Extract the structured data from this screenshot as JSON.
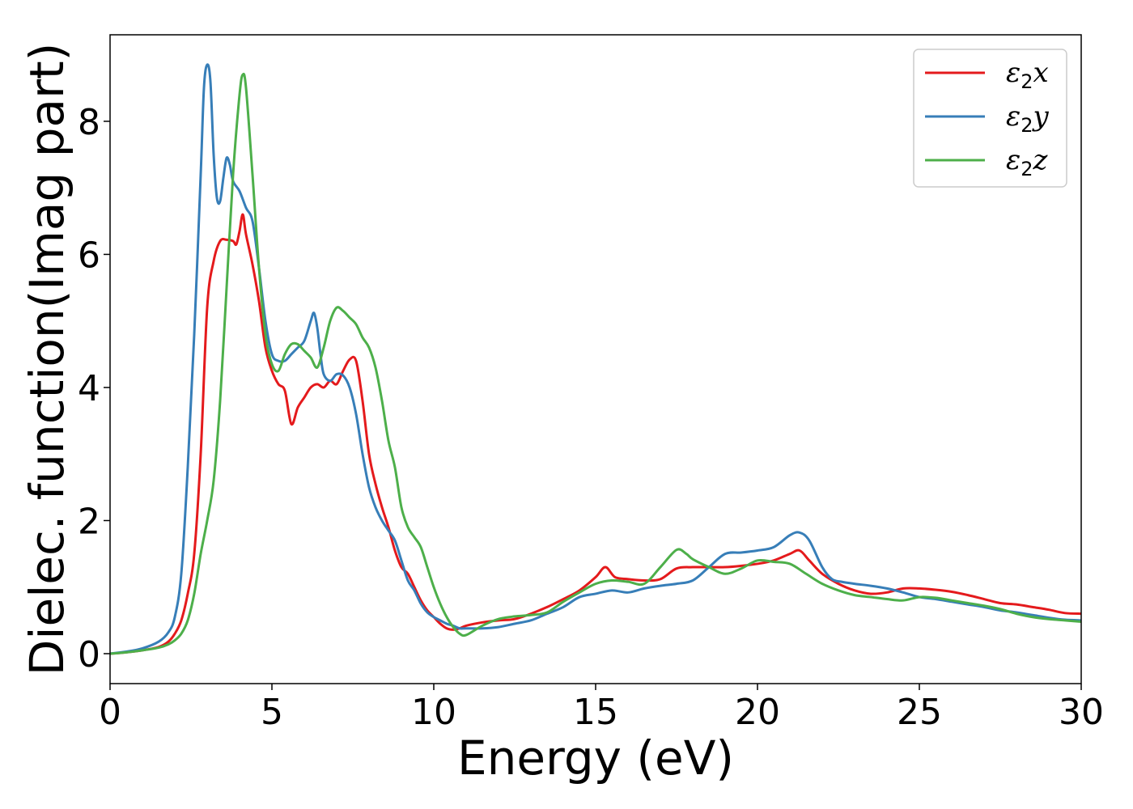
{
  "chart_data": {
    "type": "line",
    "xlabel": "Energy (eV)",
    "ylabel": "Dielec. function(Imag part)",
    "xlim": [
      0,
      30
    ],
    "ylim": [
      -0.45,
      9.3
    ],
    "xticks": [
      "0",
      "5",
      "10",
      "15",
      "20",
      "25",
      "30"
    ],
    "yticks": [
      "0",
      "2",
      "4",
      "6",
      "8"
    ],
    "grid": false,
    "legend_position": "top-right",
    "series": [
      {
        "name": "ε2x",
        "legend_symbol": "ε",
        "legend_sub": "2",
        "legend_var": "x",
        "color": "#e41a1c",
        "points": [
          [
            0,
            0
          ],
          [
            0.5,
            0.02
          ],
          [
            1,
            0.05
          ],
          [
            1.5,
            0.1
          ],
          [
            1.8,
            0.18
          ],
          [
            2,
            0.3
          ],
          [
            2.2,
            0.5
          ],
          [
            2.4,
            0.9
          ],
          [
            2.6,
            1.5
          ],
          [
            2.8,
            3
          ],
          [
            3,
            5.2
          ],
          [
            3.2,
            5.9
          ],
          [
            3.4,
            6.2
          ],
          [
            3.6,
            6.22
          ],
          [
            3.8,
            6.2
          ],
          [
            3.9,
            6.15
          ],
          [
            4,
            6.35
          ],
          [
            4.1,
            6.6
          ],
          [
            4.2,
            6.3
          ],
          [
            4.4,
            5.85
          ],
          [
            4.6,
            5.3
          ],
          [
            4.8,
            4.6
          ],
          [
            5,
            4.25
          ],
          [
            5.2,
            4.05
          ],
          [
            5.4,
            3.95
          ],
          [
            5.6,
            3.45
          ],
          [
            5.8,
            3.7
          ],
          [
            6,
            3.85
          ],
          [
            6.2,
            4.0
          ],
          [
            6.4,
            4.05
          ],
          [
            6.6,
            4.0
          ],
          [
            6.8,
            4.1
          ],
          [
            7,
            4.05
          ],
          [
            7.2,
            4.25
          ],
          [
            7.4,
            4.42
          ],
          [
            7.6,
            4.4
          ],
          [
            7.8,
            3.8
          ],
          [
            8,
            3.0
          ],
          [
            8.2,
            2.55
          ],
          [
            8.4,
            2.2
          ],
          [
            8.6,
            1.9
          ],
          [
            8.8,
            1.55
          ],
          [
            9,
            1.3
          ],
          [
            9.2,
            1.2
          ],
          [
            9.4,
            1.0
          ],
          [
            9.6,
            0.8
          ],
          [
            9.8,
            0.65
          ],
          [
            10,
            0.55
          ],
          [
            10.2,
            0.45
          ],
          [
            10.4,
            0.38
          ],
          [
            10.6,
            0.36
          ],
          [
            10.8,
            0.38
          ],
          [
            11,
            0.42
          ],
          [
            11.5,
            0.47
          ],
          [
            12,
            0.5
          ],
          [
            12.5,
            0.52
          ],
          [
            13,
            0.6
          ],
          [
            13.5,
            0.7
          ],
          [
            14,
            0.82
          ],
          [
            14.5,
            0.95
          ],
          [
            15,
            1.15
          ],
          [
            15.3,
            1.3
          ],
          [
            15.6,
            1.15
          ],
          [
            16,
            1.12
          ],
          [
            16.5,
            1.1
          ],
          [
            17,
            1.12
          ],
          [
            17.5,
            1.28
          ],
          [
            18,
            1.3
          ],
          [
            18.5,
            1.3
          ],
          [
            19,
            1.3
          ],
          [
            19.5,
            1.32
          ],
          [
            20,
            1.35
          ],
          [
            20.5,
            1.4
          ],
          [
            21,
            1.5
          ],
          [
            21.3,
            1.55
          ],
          [
            21.6,
            1.4
          ],
          [
            22,
            1.2
          ],
          [
            22.5,
            1.05
          ],
          [
            23,
            0.95
          ],
          [
            23.5,
            0.9
          ],
          [
            24,
            0.92
          ],
          [
            24.5,
            0.98
          ],
          [
            25,
            0.98
          ],
          [
            25.5,
            0.96
          ],
          [
            26,
            0.93
          ],
          [
            26.5,
            0.88
          ],
          [
            27,
            0.82
          ],
          [
            27.5,
            0.76
          ],
          [
            28,
            0.74
          ],
          [
            28.5,
            0.7
          ],
          [
            29,
            0.66
          ],
          [
            29.5,
            0.61
          ],
          [
            30,
            0.6
          ]
        ]
      },
      {
        "name": "ε2y",
        "legend_symbol": "ε",
        "legend_sub": "2",
        "legend_var": "y",
        "color": "#377eb8",
        "points": [
          [
            0,
            0
          ],
          [
            0.5,
            0.03
          ],
          [
            1,
            0.08
          ],
          [
            1.5,
            0.18
          ],
          [
            1.8,
            0.32
          ],
          [
            2,
            0.55
          ],
          [
            2.2,
            1.2
          ],
          [
            2.4,
            2.8
          ],
          [
            2.6,
            4.8
          ],
          [
            2.8,
            7.2
          ],
          [
            2.9,
            8.5
          ],
          [
            3,
            8.85
          ],
          [
            3.1,
            8.6
          ],
          [
            3.2,
            7.5
          ],
          [
            3.3,
            6.85
          ],
          [
            3.4,
            6.8
          ],
          [
            3.5,
            7.15
          ],
          [
            3.6,
            7.45
          ],
          [
            3.7,
            7.35
          ],
          [
            3.8,
            7.1
          ],
          [
            4,
            6.95
          ],
          [
            4.2,
            6.7
          ],
          [
            4.4,
            6.5
          ],
          [
            4.6,
            5.8
          ],
          [
            4.8,
            5.0
          ],
          [
            5,
            4.5
          ],
          [
            5.2,
            4.4
          ],
          [
            5.4,
            4.4
          ],
          [
            5.6,
            4.5
          ],
          [
            5.8,
            4.6
          ],
          [
            6,
            4.7
          ],
          [
            6.2,
            5.0
          ],
          [
            6.3,
            5.12
          ],
          [
            6.4,
            4.9
          ],
          [
            6.5,
            4.5
          ],
          [
            6.6,
            4.2
          ],
          [
            6.8,
            4.1
          ],
          [
            7,
            4.2
          ],
          [
            7.2,
            4.18
          ],
          [
            7.4,
            4.0
          ],
          [
            7.6,
            3.6
          ],
          [
            7.8,
            3.0
          ],
          [
            8,
            2.5
          ],
          [
            8.2,
            2.2
          ],
          [
            8.4,
            2.0
          ],
          [
            8.6,
            1.85
          ],
          [
            8.8,
            1.7
          ],
          [
            9,
            1.4
          ],
          [
            9.2,
            1.1
          ],
          [
            9.4,
            0.95
          ],
          [
            9.6,
            0.75
          ],
          [
            9.8,
            0.62
          ],
          [
            10,
            0.55
          ],
          [
            10.2,
            0.5
          ],
          [
            10.4,
            0.45
          ],
          [
            10.6,
            0.42
          ],
          [
            10.8,
            0.38
          ],
          [
            11,
            0.38
          ],
          [
            11.5,
            0.38
          ],
          [
            12,
            0.4
          ],
          [
            12.5,
            0.45
          ],
          [
            13,
            0.5
          ],
          [
            13.5,
            0.6
          ],
          [
            14,
            0.7
          ],
          [
            14.5,
            0.85
          ],
          [
            15,
            0.9
          ],
          [
            15.5,
            0.95
          ],
          [
            16,
            0.92
          ],
          [
            16.5,
            0.98
          ],
          [
            17,
            1.02
          ],
          [
            17.5,
            1.05
          ],
          [
            18,
            1.1
          ],
          [
            18.5,
            1.3
          ],
          [
            19,
            1.5
          ],
          [
            19.5,
            1.52
          ],
          [
            20,
            1.55
          ],
          [
            20.5,
            1.6
          ],
          [
            21,
            1.78
          ],
          [
            21.3,
            1.82
          ],
          [
            21.6,
            1.7
          ],
          [
            22,
            1.3
          ],
          [
            22.3,
            1.12
          ],
          [
            22.6,
            1.08
          ],
          [
            23,
            1.05
          ],
          [
            23.5,
            1.02
          ],
          [
            24,
            0.98
          ],
          [
            24.5,
            0.92
          ],
          [
            25,
            0.85
          ],
          [
            25.5,
            0.82
          ],
          [
            26,
            0.78
          ],
          [
            26.5,
            0.74
          ],
          [
            27,
            0.7
          ],
          [
            27.5,
            0.65
          ],
          [
            28,
            0.62
          ],
          [
            28.5,
            0.58
          ],
          [
            29,
            0.54
          ],
          [
            29.5,
            0.51
          ],
          [
            30,
            0.5
          ]
        ]
      },
      {
        "name": "ε2z",
        "legend_symbol": "ε",
        "legend_sub": "2",
        "legend_var": "z",
        "color": "#4daf4a",
        "points": [
          [
            0,
            0
          ],
          [
            0.5,
            0.02
          ],
          [
            1,
            0.05
          ],
          [
            1.5,
            0.09
          ],
          [
            1.8,
            0.14
          ],
          [
            2,
            0.2
          ],
          [
            2.2,
            0.3
          ],
          [
            2.4,
            0.5
          ],
          [
            2.6,
            0.9
          ],
          [
            2.8,
            1.5
          ],
          [
            3,
            2.0
          ],
          [
            3.2,
            2.6
          ],
          [
            3.4,
            3.8
          ],
          [
            3.6,
            5.5
          ],
          [
            3.8,
            7.2
          ],
          [
            4,
            8.4
          ],
          [
            4.1,
            8.7
          ],
          [
            4.2,
            8.5
          ],
          [
            4.4,
            7.2
          ],
          [
            4.6,
            5.8
          ],
          [
            4.8,
            4.8
          ],
          [
            5,
            4.35
          ],
          [
            5.2,
            4.25
          ],
          [
            5.4,
            4.5
          ],
          [
            5.6,
            4.65
          ],
          [
            5.8,
            4.65
          ],
          [
            6,
            4.55
          ],
          [
            6.2,
            4.45
          ],
          [
            6.4,
            4.3
          ],
          [
            6.6,
            4.6
          ],
          [
            6.8,
            5.0
          ],
          [
            7,
            5.2
          ],
          [
            7.2,
            5.15
          ],
          [
            7.4,
            5.05
          ],
          [
            7.6,
            4.95
          ],
          [
            7.8,
            4.75
          ],
          [
            8,
            4.6
          ],
          [
            8.2,
            4.3
          ],
          [
            8.4,
            3.8
          ],
          [
            8.6,
            3.2
          ],
          [
            8.8,
            2.8
          ],
          [
            9,
            2.2
          ],
          [
            9.2,
            1.9
          ],
          [
            9.4,
            1.75
          ],
          [
            9.6,
            1.6
          ],
          [
            9.8,
            1.3
          ],
          [
            10,
            1.0
          ],
          [
            10.2,
            0.75
          ],
          [
            10.4,
            0.55
          ],
          [
            10.6,
            0.4
          ],
          [
            10.8,
            0.3
          ],
          [
            11,
            0.28
          ],
          [
            11.5,
            0.42
          ],
          [
            12,
            0.52
          ],
          [
            12.5,
            0.56
          ],
          [
            13,
            0.58
          ],
          [
            13.5,
            0.62
          ],
          [
            14,
            0.78
          ],
          [
            14.5,
            0.92
          ],
          [
            15,
            1.05
          ],
          [
            15.5,
            1.1
          ],
          [
            16,
            1.08
          ],
          [
            16.5,
            1.05
          ],
          [
            17,
            1.3
          ],
          [
            17.5,
            1.56
          ],
          [
            17.8,
            1.5
          ],
          [
            18,
            1.42
          ],
          [
            18.5,
            1.3
          ],
          [
            19,
            1.2
          ],
          [
            19.5,
            1.28
          ],
          [
            20,
            1.4
          ],
          [
            20.5,
            1.38
          ],
          [
            21,
            1.35
          ],
          [
            21.5,
            1.2
          ],
          [
            22,
            1.05
          ],
          [
            22.5,
            0.95
          ],
          [
            23,
            0.88
          ],
          [
            23.5,
            0.85
          ],
          [
            24,
            0.82
          ],
          [
            24.5,
            0.8
          ],
          [
            25,
            0.85
          ],
          [
            25.5,
            0.84
          ],
          [
            26,
            0.8
          ],
          [
            26.5,
            0.76
          ],
          [
            27,
            0.72
          ],
          [
            27.5,
            0.67
          ],
          [
            28,
            0.6
          ],
          [
            28.5,
            0.55
          ],
          [
            29,
            0.52
          ],
          [
            29.5,
            0.5
          ],
          [
            30,
            0.48
          ]
        ]
      }
    ]
  }
}
